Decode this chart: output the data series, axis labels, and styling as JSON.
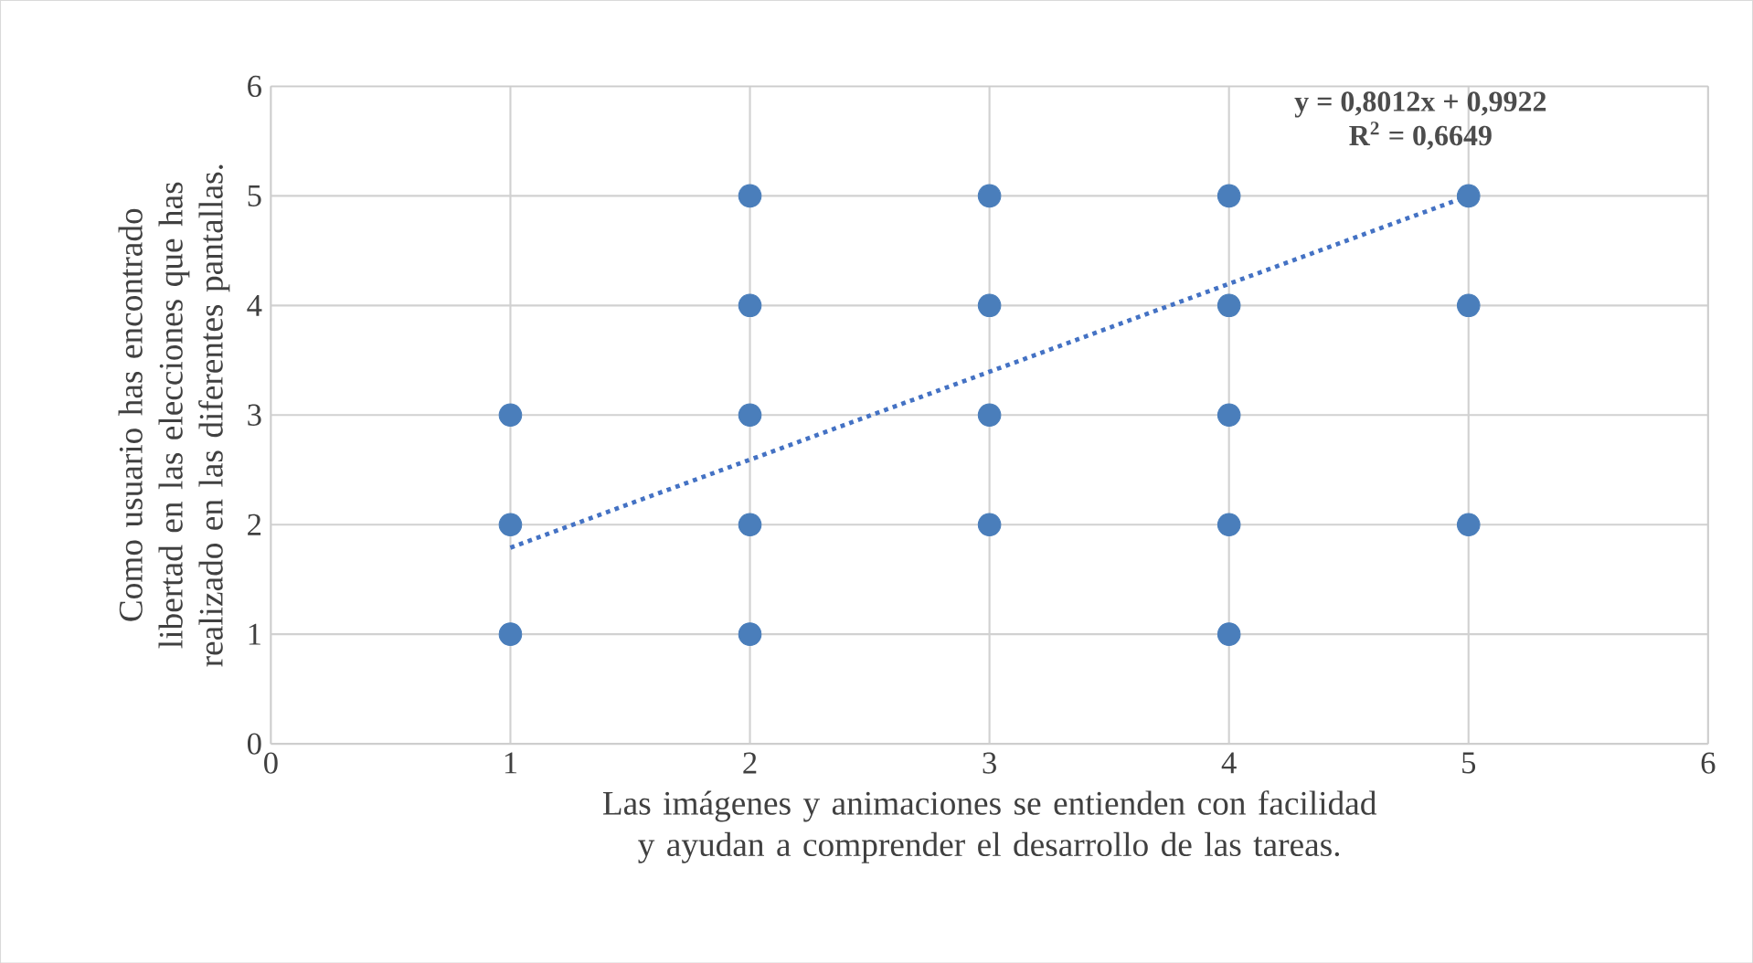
{
  "chart_data": {
    "type": "scatter",
    "xlabel": "Las imágenes y animaciones se entienden con facilidad y ayudan a comprender el desarrollo de las tareas.",
    "ylabel": "Como usuario has encontrado libertad en las elecciones que has realizado en las diferentes pantallas.",
    "x": [
      1,
      1,
      1,
      2,
      2,
      2,
      2,
      2,
      3,
      3,
      3,
      3,
      4,
      4,
      4,
      4,
      4,
      5,
      5,
      5
    ],
    "series": [
      {
        "color": "#4a7ebb",
        "marker": "circle",
        "values": [
          1,
          2,
          3,
          1,
          2,
          3,
          4,
          5,
          2,
          3,
          4,
          5,
          1,
          2,
          3,
          4,
          5,
          2,
          4,
          5
        ]
      },
      {
        "type": "line",
        "color": "#4472c4",
        "line_style": "dotted",
        "marker": "none",
        "x": [
          1,
          5
        ],
        "values": [
          1.79,
          5.0
        ]
      }
    ],
    "xlim": [
      0,
      6
    ],
    "ylim": [
      0,
      6
    ],
    "xticks": [
      0,
      1,
      2,
      3,
      4,
      5,
      6
    ],
    "yticks": [
      0,
      1,
      2,
      3,
      4,
      5,
      6
    ],
    "grid": true,
    "annotations": [
      "y = 0,8012x + 0,9922",
      "R$^{2}$ = 0,6649"
    ]
  }
}
